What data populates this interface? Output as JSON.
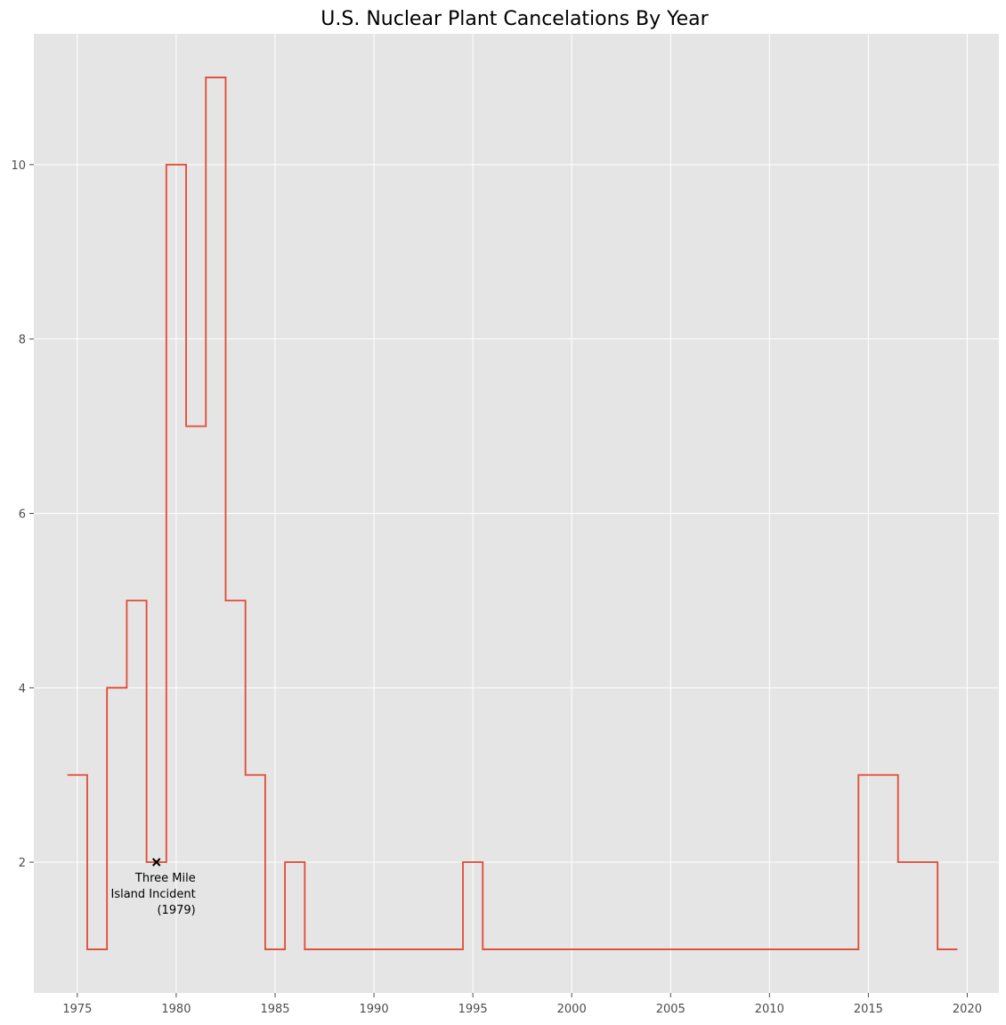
{
  "chart_data": {
    "type": "line",
    "drawstyle": "steps-mid",
    "title": "U.S. Nuclear Plant Cancelations By Year",
    "xlabel": "",
    "ylabel": "",
    "xlim": [
      1972.8,
      2021.6
    ],
    "ylim": [
      0.5,
      11.5
    ],
    "grid": true,
    "xticks": [
      1975,
      1980,
      1985,
      1990,
      1995,
      2000,
      2005,
      2010,
      2015,
      2020
    ],
    "xtick_labels": [
      "1975",
      "1980",
      "1985",
      "1990",
      "1995",
      "2000",
      "2005",
      "2010",
      "2015",
      "2020"
    ],
    "yticks": [
      2,
      4,
      6,
      8,
      10
    ],
    "ytick_labels": [
      "2",
      "4",
      "6",
      "8",
      "10"
    ],
    "series": [
      {
        "name": "cancelations",
        "color": "#E24A33",
        "x": [
          1975,
          1976,
          1977,
          1978,
          1979,
          1980,
          1981,
          1982,
          1983,
          1984,
          1985,
          1986,
          1987,
          1988,
          1989,
          1990,
          1991,
          1992,
          1993,
          1994,
          1995,
          1996,
          1997,
          1998,
          1999,
          2000,
          2001,
          2002,
          2003,
          2004,
          2005,
          2006,
          2007,
          2008,
          2009,
          2010,
          2011,
          2012,
          2013,
          2014,
          2015,
          2016,
          2017,
          2018,
          2019
        ],
        "values": [
          3,
          1,
          4,
          5,
          2,
          10,
          7,
          11,
          5,
          3,
          1,
          2,
          1,
          1,
          1,
          1,
          1,
          1,
          1,
          1,
          2,
          1,
          1,
          1,
          1,
          1,
          1,
          1,
          1,
          1,
          1,
          1,
          1,
          1,
          1,
          1,
          1,
          1,
          1,
          1,
          3,
          3,
          2,
          2,
          1
        ]
      }
    ],
    "annotations": [
      {
        "x": 1979,
        "y": 2,
        "marker": "x",
        "lines": [
          "Three Mile",
          "Island Incident",
          "(1979)"
        ]
      }
    ]
  }
}
